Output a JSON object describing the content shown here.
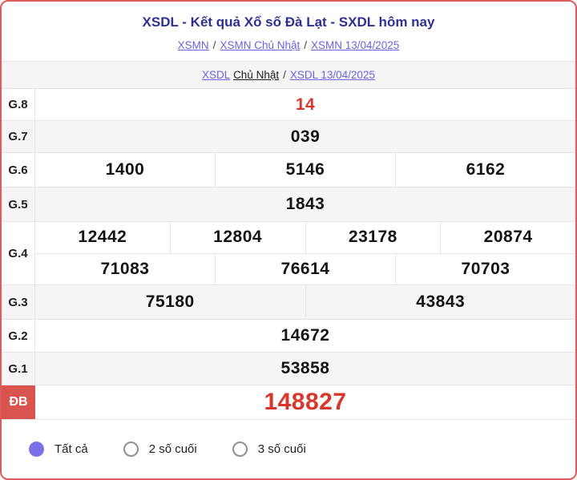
{
  "header": {
    "title": "XSDL - Kết quả Xổ số Đà Lạt - SXDL hôm nay",
    "breadcrumb": {
      "separator": "/",
      "items": [
        {
          "label": "XSMN"
        },
        {
          "label": "XSMN Chủ Nhật"
        },
        {
          "label": "XSMN 13/04/2025"
        }
      ]
    },
    "sub_breadcrumb": {
      "link": "XSDL",
      "text": "Chủ Nhật",
      "separator": "/",
      "date_link": "XSDL 13/04/2025"
    }
  },
  "results": {
    "rows": [
      {
        "label": "G.8",
        "values": [
          "14"
        ]
      },
      {
        "label": "G.7",
        "values": [
          "039"
        ]
      },
      {
        "label": "G.6",
        "values": [
          "1400",
          "5146",
          "6162"
        ]
      },
      {
        "label": "G.5",
        "values": [
          "1843"
        ]
      },
      {
        "label": "G.4",
        "lines": [
          [
            "12442",
            "12804",
            "23178",
            "20874"
          ],
          [
            "71083",
            "76614",
            "70703"
          ]
        ]
      },
      {
        "label": "G.3",
        "values": [
          "75180",
          "43843"
        ]
      },
      {
        "label": "G.2",
        "values": [
          "14672"
        ]
      },
      {
        "label": "G.1",
        "values": [
          "53858"
        ]
      },
      {
        "label": "ĐB",
        "values": [
          "148827"
        ]
      }
    ]
  },
  "filters": {
    "selected": "Tất cả",
    "options": [
      {
        "label": "Tất cả",
        "selected": true
      },
      {
        "label": "2 số cuối",
        "selected": false
      },
      {
        "label": "3 số cuối",
        "selected": false
      }
    ]
  },
  "colors": {
    "page_border": "#e05c5c",
    "title": "#2e3192",
    "link": "#6a63e2",
    "highlight_red": "#d9372c",
    "special_label_bg": "#d9534f",
    "radio_selected": "#7b70e8",
    "row_alt_bg": "#f5f5f5"
  }
}
